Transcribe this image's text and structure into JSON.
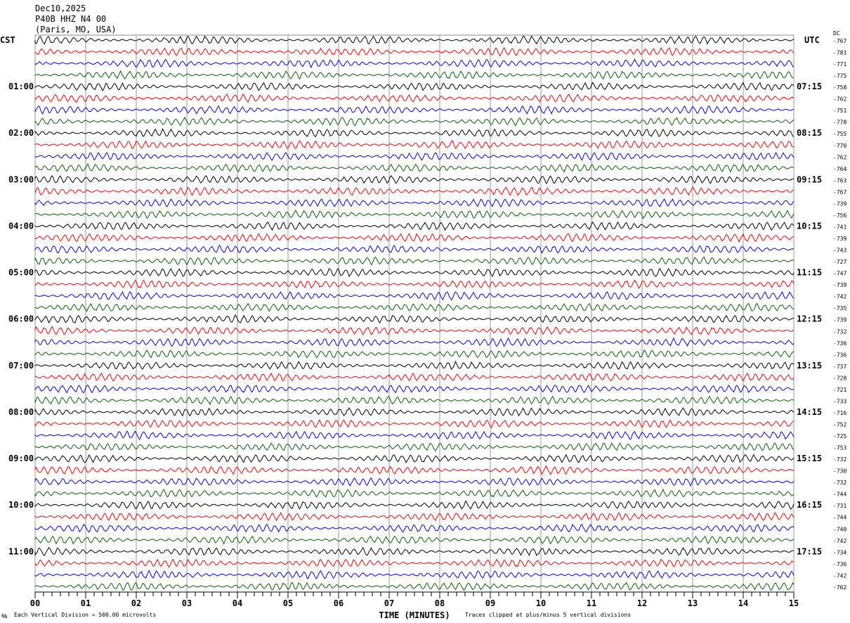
{
  "header": {
    "date": "Dec10,2025",
    "station": "P40B HHZ N4 00",
    "location": "(Paris, MO, USA)"
  },
  "chart_data": {
    "type": "line",
    "subtype": "helicorder",
    "left_timezone": "CST",
    "right_timezone": "UTC",
    "dc_label": "DC",
    "xlabel": "TIME (MINUTES)",
    "xlim": [
      0,
      15
    ],
    "x_ticks": [
      "00",
      "01",
      "02",
      "03",
      "04",
      "05",
      "06",
      "07",
      "08",
      "09",
      "10",
      "11",
      "12",
      "13",
      "14",
      "15"
    ],
    "grid": true,
    "trace_colors": [
      "#000000",
      "#ff0000",
      "#0000ff",
      "#006400"
    ],
    "traces_per_hour": 4,
    "left_hour_labels": [
      "01:00",
      "02:00",
      "03:00",
      "04:00",
      "05:00",
      "06:00",
      "07:00",
      "08:00",
      "09:00",
      "10:00",
      "11:00"
    ],
    "right_hour_labels": [
      "07:15",
      "08:15",
      "09:15",
      "10:15",
      "11:15",
      "12:15",
      "13:15",
      "14:15",
      "15:15",
      "16:15",
      "17:15"
    ],
    "dc_offsets": [
      -767,
      -781,
      -771,
      -775,
      -758,
      -762,
      -751,
      -778,
      -755,
      -770,
      -762,
      -764,
      -763,
      -767,
      -739,
      -756,
      -741,
      -739,
      -743,
      -727,
      -747,
      -739,
      -742,
      -735,
      -739,
      -732,
      -736,
      -736,
      -737,
      -728,
      -721,
      -733,
      -716,
      -752,
      -725,
      -753,
      -732,
      -730,
      -732,
      -744,
      -731,
      -744,
      -740,
      -742,
      -734,
      -736,
      -742,
      -762
    ],
    "scale_note": "Each Vertical Division =  500.00 microvolts",
    "clip_note": "Traces clipped at plus/minus 5 vertical divisions"
  }
}
